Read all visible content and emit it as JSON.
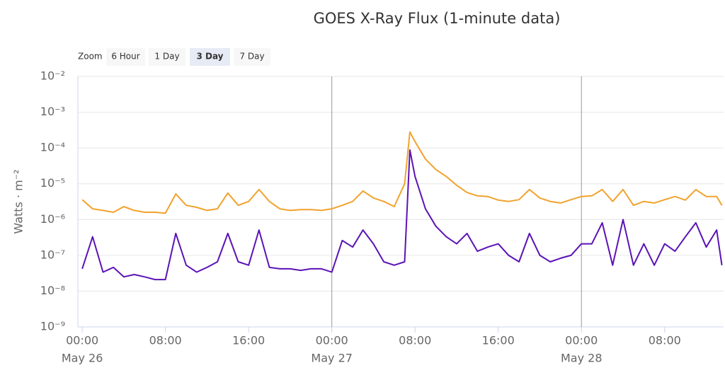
{
  "chart_data": {
    "type": "line",
    "title": "GOES X-Ray Flux (1-minute data)",
    "y_label": "Watts · m⁻²",
    "zoom": {
      "label": "Zoom",
      "options": [
        "6 Hour",
        "1 Day",
        "3 Day",
        "7 Day"
      ],
      "selected": 2
    },
    "log_y": true,
    "grid": true,
    "ylim": [
      1e-09,
      0.01
    ],
    "yticks": [
      {
        "value": 0.01,
        "label": "10⁻²"
      },
      {
        "value": 0.001,
        "label": "10⁻³"
      },
      {
        "value": 0.0001,
        "label": "10⁻⁴"
      },
      {
        "value": 1e-05,
        "label": "10⁻⁵"
      },
      {
        "value": 1e-06,
        "label": "10⁻⁶"
      },
      {
        "value": 1e-07,
        "label": "10⁻⁷"
      },
      {
        "value": 1e-08,
        "label": "10⁻⁸"
      },
      {
        "value": 1e-09,
        "label": "10⁻⁹"
      }
    ],
    "xlim": [
      "05-25T23:35",
      "05-28T13:40"
    ],
    "xticks": [
      {
        "value": "05-26T00:00",
        "label": "00:00"
      },
      {
        "value": "05-26T08:00",
        "label": "08:00"
      },
      {
        "value": "05-26T16:00",
        "label": "16:00"
      },
      {
        "value": "05-27T00:00",
        "label": "00:00"
      },
      {
        "value": "05-27T08:00",
        "label": "08:00"
      },
      {
        "value": "05-27T16:00",
        "label": "16:00"
      },
      {
        "value": "05-28T00:00",
        "label": "00:00"
      },
      {
        "value": "05-28T08:00",
        "label": "08:00"
      }
    ],
    "x_date_labels": [
      {
        "value": "05-26T00:00",
        "label": "May 26"
      },
      {
        "value": "05-27T00:00",
        "label": "May 27"
      },
      {
        "value": "05-28T00:00",
        "label": "May 28"
      }
    ],
    "x": [
      "05-26T00:00",
      "05-26T01:00",
      "05-26T02:00",
      "05-26T03:00",
      "05-26T04:00",
      "05-26T05:00",
      "05-26T06:00",
      "05-26T07:00",
      "05-26T08:00",
      "05-26T09:00",
      "05-26T10:00",
      "05-26T11:00",
      "05-26T12:00",
      "05-26T13:00",
      "05-26T14:00",
      "05-26T15:00",
      "05-26T16:00",
      "05-26T17:00",
      "05-26T18:00",
      "05-26T19:00",
      "05-26T20:00",
      "05-26T21:00",
      "05-26T22:00",
      "05-26T23:00",
      "05-27T00:00",
      "05-27T01:00",
      "05-27T02:00",
      "05-27T03:00",
      "05-27T04:00",
      "05-27T05:00",
      "05-27T06:00",
      "05-27T07:00",
      "05-27T07:30",
      "05-27T08:00",
      "05-27T09:00",
      "05-27T10:00",
      "05-27T11:00",
      "05-27T12:00",
      "05-27T13:00",
      "05-27T14:00",
      "05-27T15:00",
      "05-27T16:00",
      "05-27T17:00",
      "05-27T18:00",
      "05-27T19:00",
      "05-27T20:00",
      "05-27T21:00",
      "05-27T22:00",
      "05-27T23:00",
      "05-28T00:00",
      "05-28T01:00",
      "05-28T02:00",
      "05-28T03:00",
      "05-28T04:00",
      "05-28T05:00",
      "05-28T06:00",
      "05-28T07:00",
      "05-28T08:00",
      "05-28T09:00",
      "05-28T10:00",
      "05-28T11:00",
      "05-28T12:00",
      "05-28T13:00",
      "05-28T13:30"
    ],
    "series": [
      {
        "color": "#f2a22e",
        "values": [
          3.6e-06,
          2e-06,
          1.8e-06,
          1.6e-06,
          2.3e-06,
          1.8e-06,
          1.6e-06,
          1.6e-06,
          1.5e-06,
          5.2e-06,
          2.5e-06,
          2.2e-06,
          1.8e-06,
          2e-06,
          5.5e-06,
          2.5e-06,
          3.2e-06,
          6.9e-06,
          3.2e-06,
          2e-06,
          1.8e-06,
          1.9e-06,
          1.9e-06,
          1.8e-06,
          2e-06,
          2.5e-06,
          3.2e-06,
          6.3e-06,
          4e-06,
          3.2e-06,
          2.3e-06,
          1e-05,
          0.00028,
          0.00015,
          4.9e-05,
          2.5e-05,
          1.6e-05,
          9.1e-06,
          5.7e-06,
          4.6e-06,
          4.4e-06,
          3.5e-06,
          3.2e-06,
          3.6e-06,
          6.9e-06,
          4e-06,
          3.2e-06,
          2.9e-06,
          3.6e-06,
          4.4e-06,
          4.6e-06,
          6.9e-06,
          3.2e-06,
          6.9e-06,
          2.5e-06,
          3.2e-06,
          2.9e-06,
          3.6e-06,
          4.4e-06,
          3.5e-06,
          6.9e-06,
          4.4e-06,
          4.4e-06,
          2.5e-06
        ]
      },
      {
        "color": "#5b13b5",
        "values": [
          4.2e-08,
          3.3e-07,
          3.4e-08,
          4.6e-08,
          2.5e-08,
          2.9e-08,
          2.5e-08,
          2.1e-08,
          2.1e-08,
          4.1e-07,
          5.3e-08,
          3.4e-08,
          4.6e-08,
          6.6e-08,
          4.1e-07,
          6.6e-08,
          5.3e-08,
          5.1e-07,
          4.6e-08,
          4.2e-08,
          4.2e-08,
          3.8e-08,
          4.2e-08,
          4.2e-08,
          3.4e-08,
          2.6e-07,
          1.7e-07,
          5.1e-07,
          2.1e-07,
          6.6e-08,
          5.3e-08,
          6.6e-08,
          8.8e-05,
          1.6e-05,
          2e-06,
          6.5e-07,
          3.3e-07,
          2.1e-07,
          4.1e-07,
          1.3e-07,
          1.7e-07,
          2.1e-07,
          1e-07,
          6.6e-08,
          4.1e-07,
          1e-07,
          6.6e-08,
          8.3e-08,
          1e-07,
          2.1e-07,
          2.1e-07,
          8.1e-07,
          5.3e-08,
          1e-06,
          5.3e-08,
          2.1e-07,
          5.3e-08,
          2.1e-07,
          1.3e-07,
          3.3e-07,
          8.1e-07,
          1.7e-07,
          5.1e-07,
          5.3e-08
        ]
      }
    ]
  }
}
